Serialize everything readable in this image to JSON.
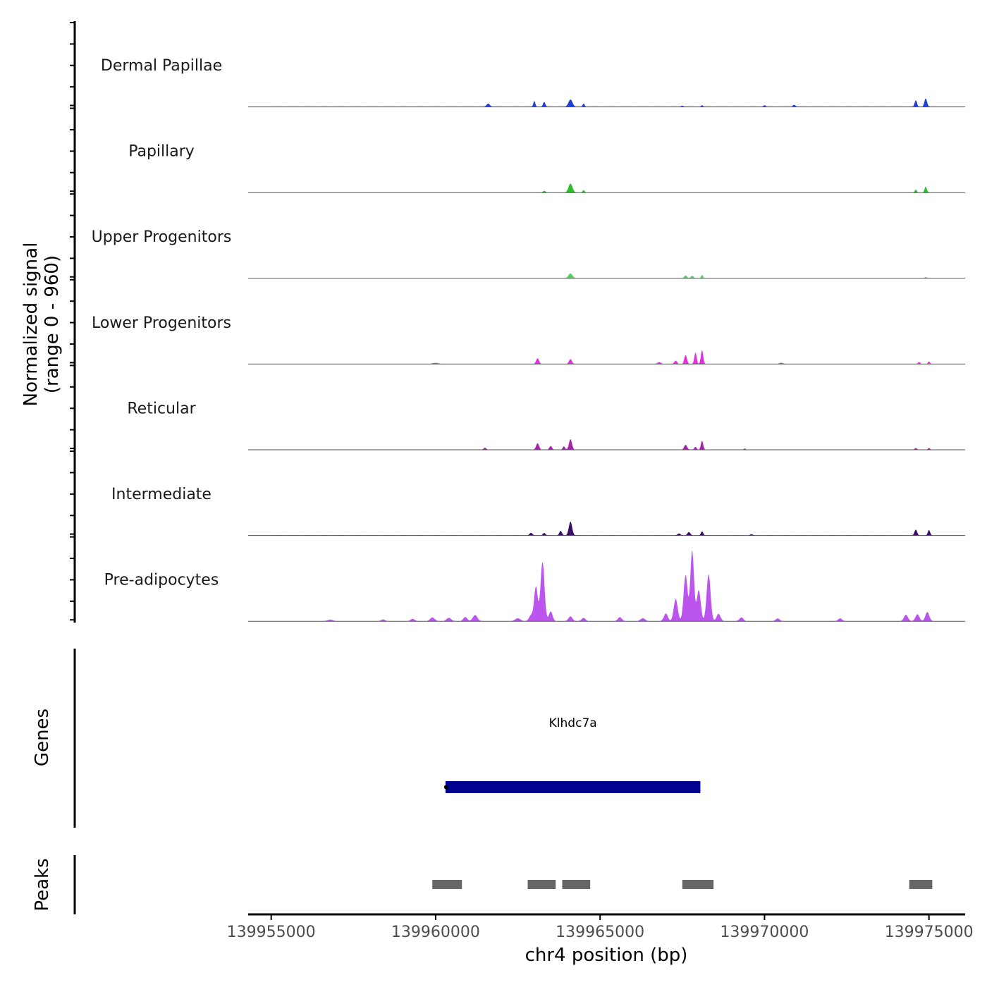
{
  "chart_data": {
    "type": "area",
    "title": "",
    "xlabel": "chr4 position (bp)",
    "ylabel_line1": "Normalized signal",
    "ylabel_line2": "(range 0 - 960)",
    "xlim": [
      139954300,
      139976100
    ],
    "ylim": [
      0,
      960
    ],
    "x_ticks": [
      139955000,
      139960000,
      139965000,
      139970000,
      139975000
    ],
    "x_tick_labels": [
      "139955000",
      "139960000",
      "139965000",
      "139970000",
      "139975000"
    ],
    "series": [
      {
        "name": "Dermal Papillae",
        "color": "#1f3fd1",
        "peaks": [
          [
            139961600,
            50,
            40
          ],
          [
            139963000,
            30,
            70
          ],
          [
            139963300,
            35,
            60
          ],
          [
            139964100,
            60,
            90
          ],
          [
            139964500,
            30,
            40
          ],
          [
            139967500,
            35,
            15
          ],
          [
            139968100,
            30,
            20
          ],
          [
            139970000,
            35,
            20
          ],
          [
            139970900,
            40,
            25
          ],
          [
            139974600,
            35,
            80
          ],
          [
            139974900,
            40,
            100
          ]
        ]
      },
      {
        "name": "Papillary",
        "color": "#2dbd2d",
        "peaks": [
          [
            139963300,
            40,
            20
          ],
          [
            139964100,
            60,
            110
          ],
          [
            139964500,
            30,
            30
          ],
          [
            139974600,
            30,
            35
          ],
          [
            139974900,
            35,
            70
          ]
        ]
      },
      {
        "name": "Upper Progenitors",
        "color": "#4fd15a",
        "peaks": [
          [
            139964100,
            60,
            60
          ],
          [
            139967600,
            40,
            35
          ],
          [
            139967800,
            40,
            30
          ],
          [
            139968100,
            30,
            40
          ],
          [
            139974900,
            30,
            15
          ]
        ]
      },
      {
        "name": "Lower Progenitors",
        "color": "#e62ee0",
        "peaks": [
          [
            139960000,
            100,
            12
          ],
          [
            139963100,
            45,
            70
          ],
          [
            139964100,
            45,
            60
          ],
          [
            139966800,
            60,
            20
          ],
          [
            139967300,
            40,
            40
          ],
          [
            139967600,
            40,
            110
          ],
          [
            139967900,
            35,
            140
          ],
          [
            139968100,
            35,
            170
          ],
          [
            139970500,
            60,
            15
          ],
          [
            139974700,
            35,
            25
          ],
          [
            139975000,
            30,
            30
          ]
        ]
      },
      {
        "name": "Reticular",
        "color": "#a624ad",
        "peaks": [
          [
            139961500,
            40,
            25
          ],
          [
            139963100,
            45,
            80
          ],
          [
            139963500,
            40,
            45
          ],
          [
            139963900,
            35,
            40
          ],
          [
            139964100,
            45,
            130
          ],
          [
            139967600,
            45,
            60
          ],
          [
            139967900,
            35,
            35
          ],
          [
            139968100,
            35,
            110
          ],
          [
            139969400,
            30,
            15
          ],
          [
            139974600,
            35,
            20
          ],
          [
            139975000,
            30,
            20
          ]
        ]
      },
      {
        "name": "Intermediate",
        "color": "#3b0f63",
        "peaks": [
          [
            139962900,
            45,
            30
          ],
          [
            139963300,
            40,
            30
          ],
          [
            139963800,
            40,
            55
          ],
          [
            139964100,
            50,
            170
          ],
          [
            139967400,
            45,
            25
          ],
          [
            139967700,
            45,
            40
          ],
          [
            139968100,
            35,
            50
          ],
          [
            139969600,
            40,
            15
          ],
          [
            139974600,
            40,
            70
          ],
          [
            139975000,
            35,
            65
          ]
        ]
      },
      {
        "name": "Pre-adipocytes",
        "color": "#bb55ee",
        "peaks": [
          [
            139956800,
            80,
            20
          ],
          [
            139958400,
            60,
            22
          ],
          [
            139959300,
            60,
            30
          ],
          [
            139959900,
            70,
            45
          ],
          [
            139960400,
            70,
            40
          ],
          [
            139960900,
            60,
            50
          ],
          [
            139961200,
            70,
            75
          ],
          [
            139962500,
            80,
            35
          ],
          [
            139962900,
            60,
            70
          ],
          [
            139963050,
            55,
            420
          ],
          [
            139963250,
            60,
            720
          ],
          [
            139963500,
            55,
            120
          ],
          [
            139964100,
            60,
            60
          ],
          [
            139964500,
            60,
            40
          ],
          [
            139965600,
            60,
            50
          ],
          [
            139966300,
            70,
            35
          ],
          [
            139967000,
            60,
            95
          ],
          [
            139967300,
            60,
            270
          ],
          [
            139967600,
            60,
            560
          ],
          [
            139967800,
            55,
            860
          ],
          [
            139968000,
            60,
            380
          ],
          [
            139968300,
            60,
            570
          ],
          [
            139968600,
            60,
            90
          ],
          [
            139969300,
            60,
            45
          ],
          [
            139970400,
            60,
            35
          ],
          [
            139972300,
            60,
            35
          ],
          [
            139974300,
            60,
            80
          ],
          [
            139974650,
            60,
            85
          ],
          [
            139974950,
            60,
            110
          ]
        ]
      }
    ],
    "genes": {
      "label": "Genes",
      "items": [
        {
          "name": "Klhdc7a",
          "start": 139960300,
          "end": 139968050,
          "color": "#000090"
        }
      ]
    },
    "peaks_track": {
      "label": "Peaks",
      "color": "#666666",
      "intervals": [
        [
          139959900,
          139960800
        ],
        [
          139962800,
          139963650
        ],
        [
          139963850,
          139964700
        ],
        [
          139967500,
          139968450
        ],
        [
          139974400,
          139975100
        ]
      ]
    }
  }
}
